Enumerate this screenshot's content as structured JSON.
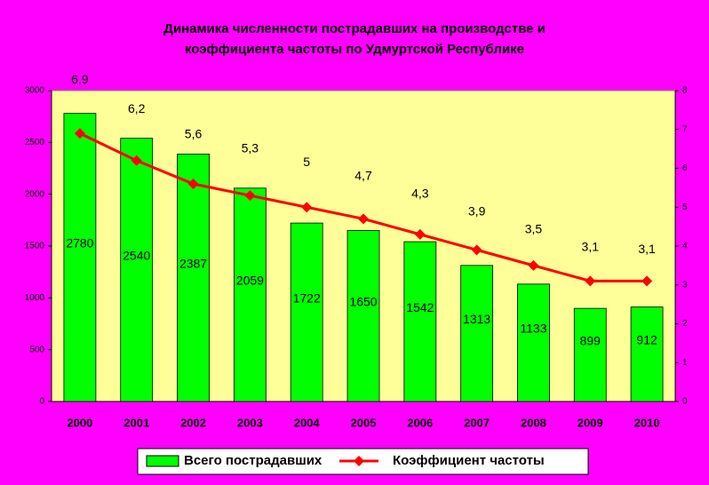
{
  "chart_data": {
    "type": "bar",
    "title": [
      "Динамика численности пострадавших на производстве и",
      "коэффициента частоты по Удмуртской Республике"
    ],
    "categories": [
      "2000",
      "2001",
      "2002",
      "2003",
      "2004",
      "2005",
      "2006",
      "2007",
      "2008",
      "2009",
      "2010"
    ],
    "series": [
      {
        "name": "Всего пострадавших",
        "type": "bar",
        "color": "#00FF00",
        "axis": "y",
        "values": [
          2780,
          2540,
          2387,
          2059,
          1722,
          1650,
          1542,
          1313,
          1133,
          899,
          912
        ]
      },
      {
        "name": "Коэффициент частоты",
        "type": "line",
        "color": "#FF0000",
        "axis": "y2",
        "values": [
          6.9,
          6.2,
          5.6,
          5.3,
          5,
          4.7,
          4.3,
          3.9,
          3.5,
          3.1,
          3.1
        ],
        "value_labels": [
          "6,9",
          "6,2",
          "5,6",
          "5,3",
          "5",
          "4,7",
          "4,3",
          "3,9",
          "3,5",
          "3,1",
          "3,1"
        ]
      }
    ],
    "ylim": [
      0,
      3000
    ],
    "yticks": [
      0,
      500,
      1000,
      1500,
      2000,
      2500,
      3000
    ],
    "y2lim": [
      0,
      8
    ],
    "y2ticks": [
      0,
      1,
      2,
      3,
      4,
      5,
      6,
      7,
      8
    ],
    "legend": "bottom",
    "plot_background": "#FFFF99",
    "background": "#FF00FF"
  }
}
